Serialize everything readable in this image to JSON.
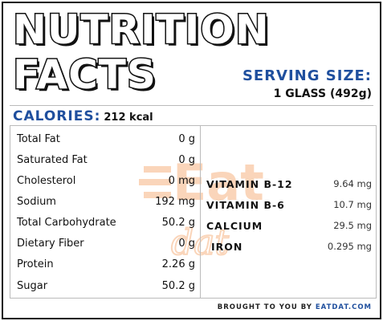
{
  "title": {
    "line1": "NUTRITION",
    "line2": "FACTS"
  },
  "serving": {
    "label": "SERVING SIZE:",
    "value": "1 GLASS (492g)"
  },
  "calories": {
    "label": "CALORIES:",
    "value": "212 kcal"
  },
  "nutrients": [
    {
      "label": "Total Fat",
      "value": "0 g"
    },
    {
      "label": "Saturated Fat",
      "value": "0 g"
    },
    {
      "label": "Cholesterol",
      "value": "0 mg"
    },
    {
      "label": "Sodium",
      "value": "192 mg"
    },
    {
      "label": "Total Carbohydrate",
      "value": "50.2 g"
    },
    {
      "label": "Dietary Fiber",
      "value": "0 g"
    },
    {
      "label": "Protein",
      "value": "2.26 g"
    },
    {
      "label": "Sugar",
      "value": "50.2 g"
    }
  ],
  "vitamins": [
    {
      "label": "VITAMIN B-12",
      "value": "9.64 mg"
    },
    {
      "label": "VITAMIN B-6",
      "value": "10.7 mg"
    },
    {
      "label": "CALCIUM",
      "value": "29.5 mg"
    },
    {
      "label": "IRON",
      "value": "0.295 mg"
    }
  ],
  "footer": {
    "prefix": "BROUGHT TO YOU BY",
    "brand": "EATDAT.COM"
  },
  "watermark": {
    "text": "Eat",
    "sub": "dat"
  },
  "colors": {
    "accent": "#1f4f9e",
    "watermark": "#f28a3c",
    "text": "#111111"
  }
}
